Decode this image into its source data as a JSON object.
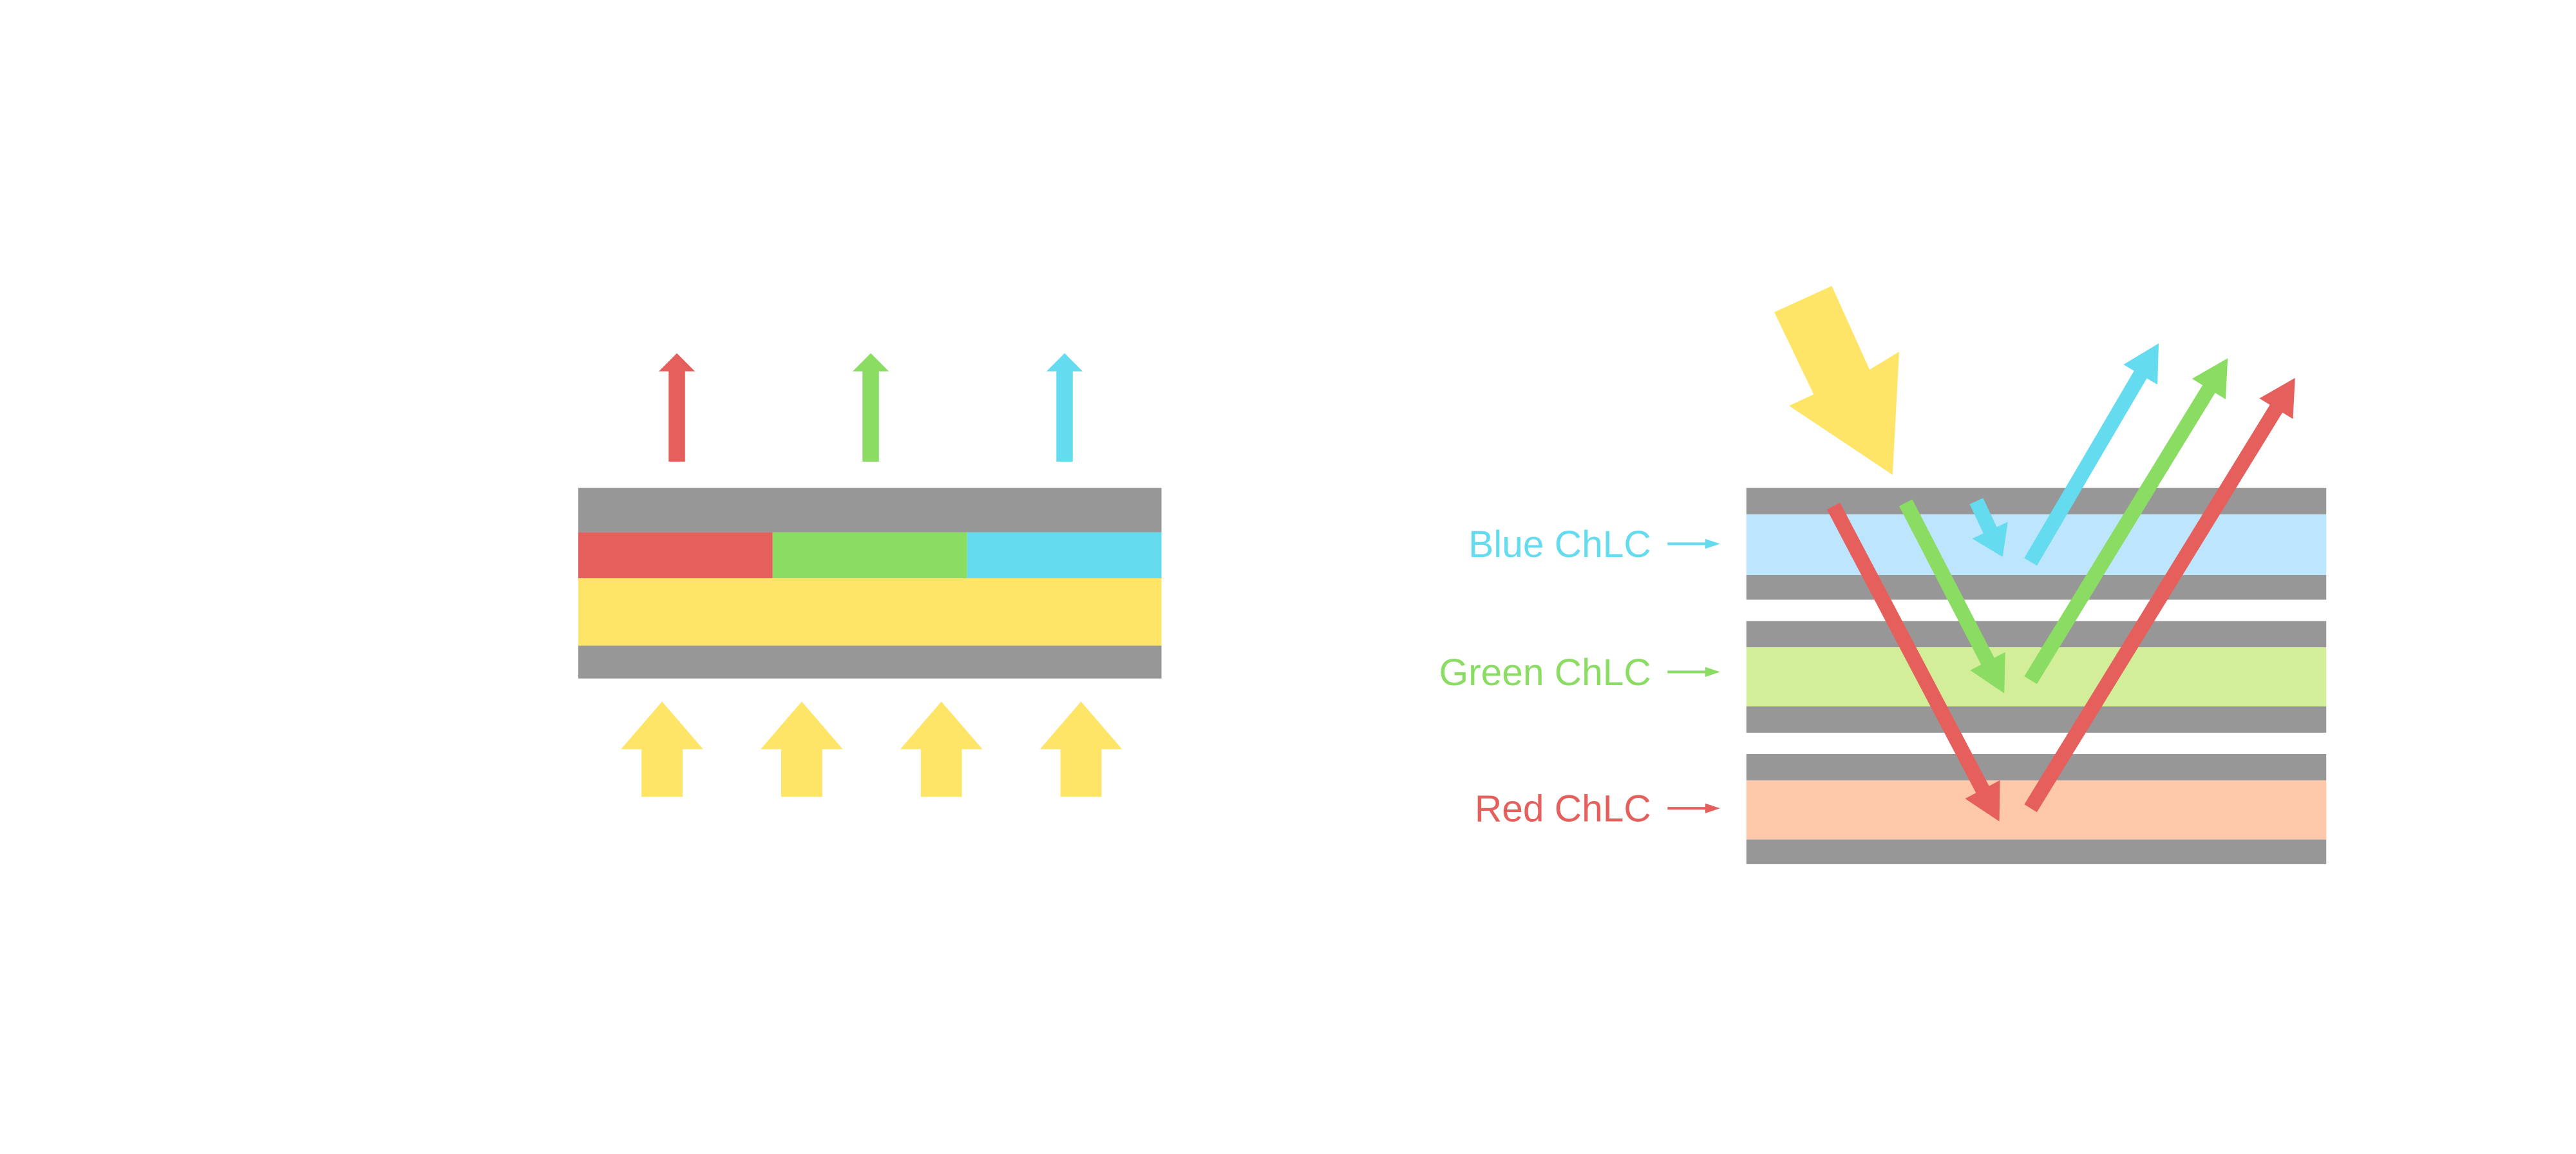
{
  "colors": {
    "gray": "#979797",
    "red": "#e5605c",
    "green": "#8adc63",
    "cyan": "#64dbef",
    "yellow": "#fee568",
    "blue_layer": "#bde5fd",
    "green_layer": "#d3ee99",
    "red_layer": "#fec8aa"
  },
  "labels": {
    "blue": "Blue ChLC",
    "green": "Green ChLC",
    "red": "Red ChLC"
  }
}
